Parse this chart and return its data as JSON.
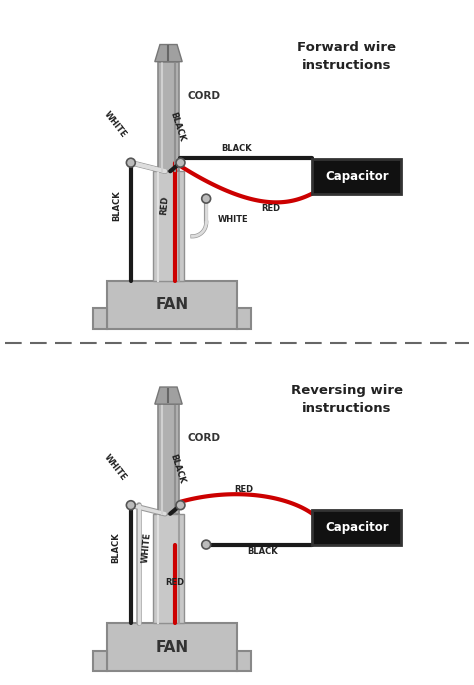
{
  "bg_color": "#ffffff",
  "title_forward": "Forward wire\ninstructions",
  "title_reverse": "Reversing wire\ninstructions",
  "capacitor_color": "#111111",
  "capacitor_text": "Capacitor",
  "fan_text": "FAN",
  "cord_text": "CORD",
  "wire_colors": {
    "black": "#1a1a1a",
    "white": "#dddddd",
    "red": "#cc0000",
    "gray": "#999999"
  },
  "node_color": "#aaaaaa",
  "dashed_line_color": "#666666"
}
